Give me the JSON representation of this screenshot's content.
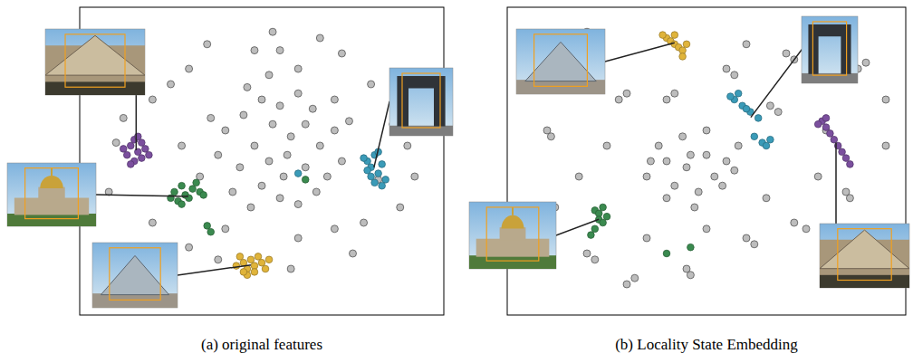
{
  "chart_data": [
    {
      "type": "scatter",
      "title": "(a) original features",
      "tick_labels": false,
      "xlim": [
        0,
        100
      ],
      "ylim": [
        0,
        100
      ],
      "series": [
        {
          "color": "#bdbdbd",
          "x": [
            40,
            45,
            50,
            55,
            60,
            48,
            52,
            58,
            62,
            66,
            70,
            44,
            50,
            56,
            62,
            68,
            72,
            42,
            47,
            55,
            60,
            65,
            53,
            57,
            46,
            52,
            60,
            64,
            38,
            36,
            70,
            74,
            53,
            55,
            48,
            30,
            25,
            20,
            12,
            10,
            8,
            20,
            30,
            38,
            60,
            70,
            78,
            88,
            92,
            86,
            80,
            72,
            66,
            35,
            15,
            40,
            58,
            90,
            82,
            28,
            33,
            75
          ],
          "values": [
            60,
            65,
            70,
            68,
            72,
            55,
            50,
            58,
            62,
            55,
            60,
            48,
            42,
            45,
            48,
            45,
            50,
            40,
            35,
            38,
            36,
            40,
            62,
            52,
            74,
            78,
            80,
            67,
            52,
            64,
            70,
            63,
            92,
            86,
            86,
            80,
            75,
            70,
            64,
            56,
            40,
            30,
            22,
            18,
            25,
            28,
            30,
            35,
            45,
            62,
            75,
            85,
            90,
            88,
            85,
            28,
            15,
            55,
            44,
            55,
            45,
            20
          ]
        },
        {
          "color": "#7b4f9e",
          "x": [
            14,
            15,
            16,
            17,
            13,
            15,
            18,
            16,
            14,
            17,
            19,
            12
          ],
          "values": [
            55,
            57,
            53,
            56,
            52,
            50,
            54,
            58,
            49,
            51,
            52,
            54
          ]
        },
        {
          "color": "#3a8a4f",
          "x": [
            26,
            28,
            29,
            31,
            30,
            27,
            32,
            33,
            28,
            25,
            34,
            35,
            36,
            62
          ],
          "values": [
            40,
            42,
            39,
            41,
            38,
            37,
            43,
            40,
            36,
            38,
            39,
            29,
            27,
            44
          ]
        },
        {
          "color": "#3a9bb8",
          "x": [
            79,
            80,
            81,
            82,
            83,
            80,
            82,
            84,
            81,
            79,
            78,
            83,
            60
          ],
          "values": [
            50,
            48,
            52,
            46,
            49,
            45,
            53,
            44,
            43,
            47,
            51,
            42,
            46
          ]
        },
        {
          "color": "#e0b43a",
          "x": [
            43,
            45,
            46,
            47,
            48,
            49,
            50,
            44,
            46,
            51,
            48,
            52,
            45
          ],
          "values": [
            16,
            17,
            15,
            18,
            16,
            19,
            17,
            19,
            13,
            15,
            14,
            18,
            14
          ]
        }
      ]
    },
    {
      "type": "scatter",
      "title": "(b) Locality State Embedding",
      "tick_labels": false,
      "xlim": [
        0,
        100
      ],
      "ylim": [
        0,
        100
      ],
      "series": [
        {
          "color": "#bdbdbd",
          "x": [
            35,
            40,
            45,
            50,
            55,
            42,
            48,
            52,
            58,
            38,
            44,
            50,
            46,
            54,
            40,
            57,
            47,
            36,
            15,
            16,
            10,
            11,
            18,
            20,
            22,
            30,
            32,
            45,
            46,
            60,
            62,
            72,
            75,
            85,
            86,
            90,
            92,
            88,
            90,
            70,
            72,
            55,
            57,
            30,
            28,
            20,
            60,
            66,
            68,
            78,
            5,
            6,
            25,
            35,
            50,
            65,
            80,
            95,
            40,
            42,
            12,
            95
          ],
          "values": [
            45,
            50,
            48,
            52,
            50,
            42,
            40,
            45,
            55,
            55,
            58,
            60,
            52,
            42,
            38,
            47,
            35,
            50,
            80,
            78,
            60,
            58,
            45,
            20,
            18,
            10,
            12,
            15,
            13,
            25,
            23,
            30,
            28,
            40,
            38,
            20,
            18,
            80,
            82,
            85,
            83,
            80,
            78,
            72,
            70,
            92,
            88,
            68,
            66,
            45,
            30,
            32,
            55,
            25,
            28,
            38,
            60,
            55,
            70,
            72,
            35,
            70
          ]
        },
        {
          "color": "#7b4f9e",
          "x": [
            79,
            80,
            81,
            82,
            83,
            84,
            85,
            86,
            80,
            78
          ],
          "values": [
            63,
            61,
            59,
            57,
            55,
            53,
            51,
            49,
            64,
            62
          ]
        },
        {
          "color": "#3a8a4f",
          "x": [
            22,
            23,
            24,
            25,
            23,
            22,
            21,
            24,
            40,
            46
          ],
          "values": [
            34,
            33,
            35,
            32,
            31,
            28,
            26,
            30,
            20,
            22
          ]
        },
        {
          "color": "#3a9bb8",
          "x": [
            57,
            59,
            61,
            63,
            58,
            60,
            62,
            64,
            66,
            65,
            56
          ],
          "values": [
            70,
            68,
            66,
            64,
            72,
            67,
            58,
            56,
            57,
            55,
            71
          ]
        },
        {
          "color": "#e0b43a",
          "x": [
            40,
            41,
            42,
            43,
            44,
            45,
            39,
            42,
            44
          ],
          "values": [
            90,
            89,
            88,
            87,
            86,
            88,
            91,
            91,
            84
          ]
        }
      ]
    }
  ]
}
